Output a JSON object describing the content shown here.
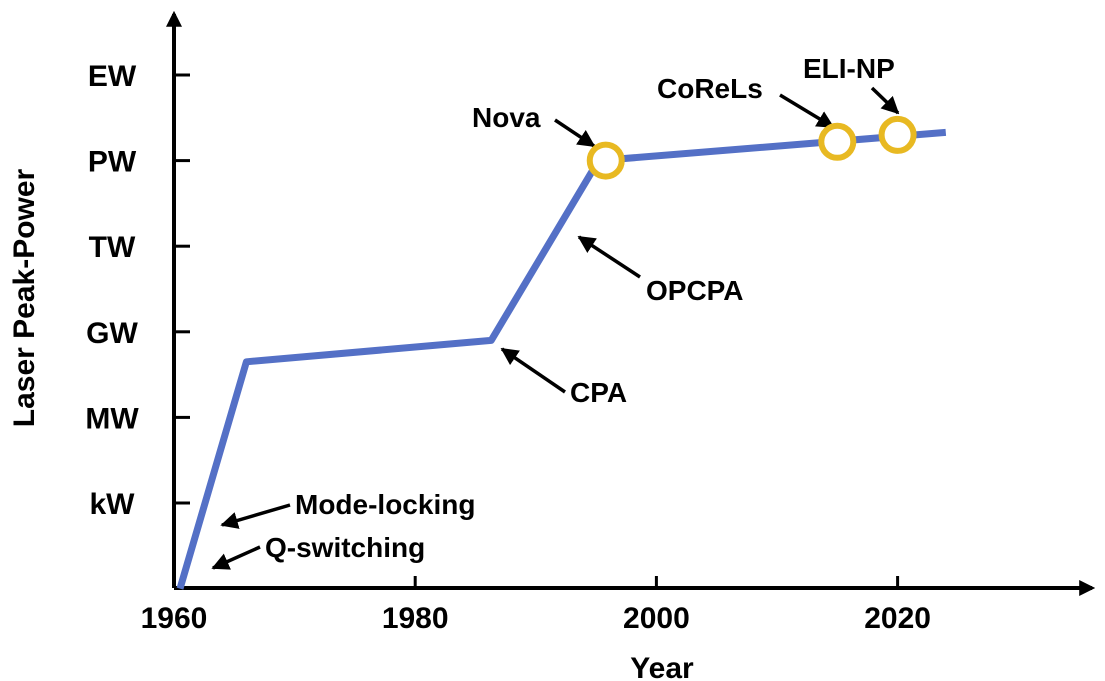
{
  "chart_data": {
    "type": "line",
    "title": "",
    "xlabel": "Year",
    "ylabel": "Laser Peak-Power",
    "xlim": [
      1960,
      2035
    ],
    "x_ticks": [
      1960,
      1980,
      2000,
      2020
    ],
    "y_levels": [
      "kW",
      "MW",
      "GW",
      "TW",
      "PW",
      "EW"
    ],
    "ylim": [
      -1,
      5.8
    ],
    "y_scale": "categorical power levels (kW=0, MW=1, GW=2, TW=3, PW=4, EW=5)",
    "grid": false,
    "legend": "none",
    "series": [
      {
        "x": [
          1960.5,
          1966.0,
          1986.3,
          1995.2,
          2024.0
        ],
        "y": [
          -1.0,
          1.65,
          1.9,
          4.0,
          4.33
        ]
      }
    ],
    "milestones": [
      {
        "label": "Nova",
        "x": 1995.8,
        "y": 4.0
      },
      {
        "label": "CoReLs",
        "x": 2015.0,
        "y": 4.22
      },
      {
        "label": "ELI-NP",
        "x": 2020.0,
        "y": 4.3
      }
    ],
    "annotations": [
      {
        "text": "Mode-locking",
        "x": 1961.8,
        "y": -0.25
      },
      {
        "text": "Q-switching",
        "x": 1961.1,
        "y": -0.75
      },
      {
        "text": "CPA",
        "x": 1986.8,
        "y": 1.8
      },
      {
        "text": "OPCPA",
        "x": 1992.7,
        "y": 2.8
      },
      {
        "text": "Nova",
        "x": 1995.8,
        "y": 4.0
      },
      {
        "text": "CoReLs",
        "x": 2015.0,
        "y": 4.22
      },
      {
        "text": "ELI-NP",
        "x": 2020.0,
        "y": 4.3
      }
    ],
    "colors": {
      "line": "#5470c6",
      "milestone": "#e8b922",
      "axis": "#000000"
    }
  }
}
